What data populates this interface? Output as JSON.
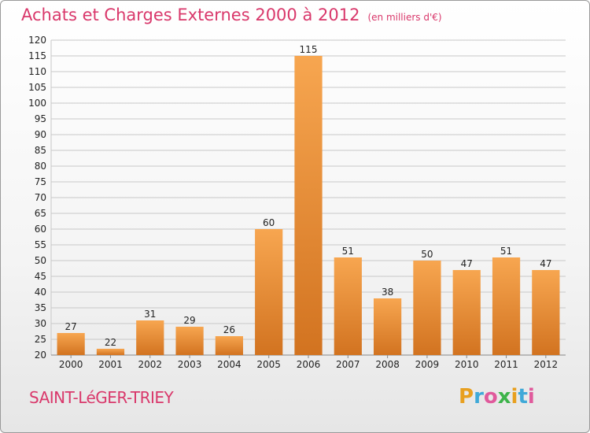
{
  "header": {
    "title": "Achats et Charges Externes 2000 à 2012",
    "unit": "(en milliers d'€)"
  },
  "footer": {
    "commune": "SAINT-LéGER-TRIEY"
  },
  "logo": {
    "text": "Proxiti",
    "letters": [
      "P",
      "r",
      "o",
      "x",
      "i",
      "t",
      "i"
    ],
    "colors": [
      "#e8a020",
      "#3fa9d8",
      "#e05a9c",
      "#3db34a",
      "#e8a020",
      "#3fa9d8",
      "#e05a9c"
    ]
  },
  "colors": {
    "bar_light": "#f7a650",
    "bar_dark": "#d27320",
    "grid": "#c8c8c8",
    "axis_text": "#222222",
    "title": "#d9386b"
  },
  "chart_data": {
    "type": "bar",
    "title": "Achats et Charges Externes 2000 à 2012",
    "subtitle": "(en milliers d'€)",
    "xlabel": "",
    "ylabel": "",
    "categories": [
      "2000",
      "2001",
      "2002",
      "2003",
      "2004",
      "2005",
      "2006",
      "2007",
      "2008",
      "2009",
      "2010",
      "2011",
      "2012"
    ],
    "values": [
      27,
      22,
      31,
      29,
      26,
      60,
      115,
      51,
      38,
      50,
      47,
      51,
      47
    ],
    "ylim": [
      20,
      120
    ],
    "yticks": [
      20,
      25,
      30,
      35,
      40,
      45,
      50,
      55,
      60,
      65,
      70,
      75,
      80,
      85,
      90,
      95,
      100,
      105,
      110,
      115,
      120
    ],
    "grid": true,
    "data_labels": true
  }
}
